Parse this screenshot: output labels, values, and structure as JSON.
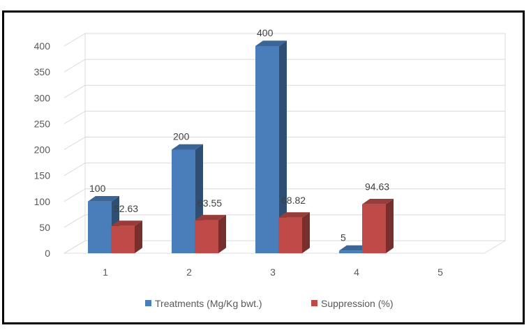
{
  "chart_data": {
    "type": "bar",
    "title": "",
    "xlabel": "",
    "ylabel": "",
    "categories": [
      "1",
      "2",
      "3",
      "4",
      "5"
    ],
    "series": [
      {
        "name": "Treatments (Mg/Kg bwt.)",
        "values": [
          100,
          200,
          400,
          5,
          null
        ],
        "labels": [
          "100",
          "200",
          "400",
          "5",
          ""
        ],
        "color": "#4a7ebb"
      },
      {
        "name": "Suppression (%)",
        "values": [
          52.63,
          63.55,
          68.82,
          94.63,
          null
        ],
        "labels": [
          "52.63",
          "63.55",
          "68.82",
          "94.63",
          ""
        ],
        "color": "#be4b48"
      }
    ],
    "ylim": [
      0,
      400
    ],
    "yticks": [
      "0",
      "50",
      "100",
      "150",
      "200",
      "250",
      "300",
      "350",
      "400"
    ],
    "grid": true,
    "legend_position": "bottom",
    "style": "3d-column"
  }
}
